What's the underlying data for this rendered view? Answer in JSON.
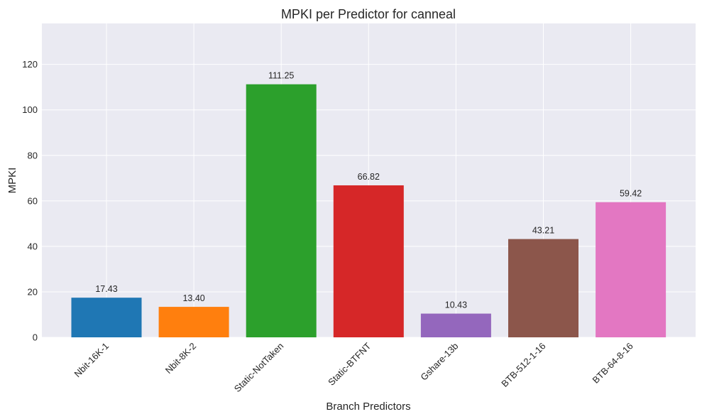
{
  "chart_data": {
    "type": "bar",
    "title": "MPKI per Predictor for canneal",
    "xlabel": "Branch Predictors",
    "ylabel": "MPKI",
    "categories": [
      "Nbit-16K-1",
      "Nbit-8K-2",
      "Static-NotTaken",
      "Static-BTFNT",
      "Gshare-13b",
      "BTB-512-1-16",
      "BTB-64-8-16"
    ],
    "values": [
      17.43,
      13.4,
      111.25,
      66.82,
      10.43,
      43.21,
      59.42
    ],
    "value_labels": [
      "17.43",
      "13.40",
      "111.25",
      "66.82",
      "10.43",
      "43.21",
      "59.42"
    ],
    "colors": [
      "#1f77b4",
      "#ff7f0e",
      "#2ca02c",
      "#d62728",
      "#9467bd",
      "#8c564b",
      "#e377c2"
    ],
    "ylim": [
      0,
      138
    ],
    "yticks": [
      0,
      20,
      40,
      60,
      80,
      100,
      120
    ],
    "grid": true,
    "background_color": "#eaeaf2"
  }
}
